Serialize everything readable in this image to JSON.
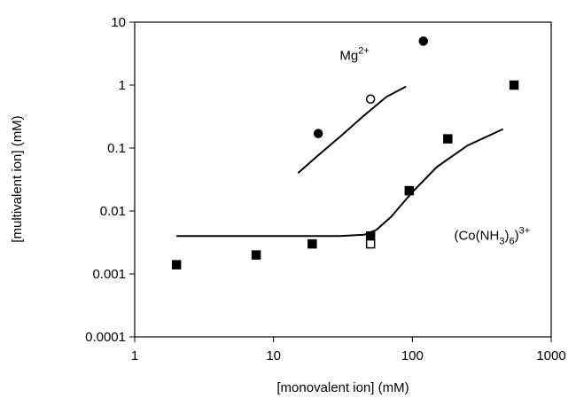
{
  "chart_data": {
    "type": "scatter",
    "x_label": "[monovalent ion] (mM)",
    "y_label": "[multivalent ion] (mM)",
    "log_x": true,
    "log_y": true,
    "xlim": [
      1,
      1000
    ],
    "xticks": [
      1,
      10,
      100,
      1000
    ],
    "ylim": [
      0.0001,
      10
    ],
    "yticks": [
      0.0001,
      0.001,
      0.01,
      0.1,
      1,
      10
    ],
    "color": "#000000",
    "series": [
      {
        "marker": "square",
        "filled": true,
        "x": [
          2,
          7.5,
          19,
          50,
          95,
          180,
          540
        ],
        "values": [
          0.0014,
          0.002,
          0.003,
          0.004,
          0.021,
          0.14,
          1
        ]
      },
      {
        "marker": "square",
        "filled": false,
        "x": [
          50
        ],
        "values": [
          0.003
        ]
      },
      {
        "marker": "circle",
        "filled": true,
        "x": [
          21,
          120
        ],
        "values": [
          0.17,
          5
        ]
      },
      {
        "marker": "circle",
        "filled": false,
        "x": [
          50
        ],
        "values": [
          0.6
        ]
      },
      {
        "marker": "line",
        "x": [
          15,
          20,
          30,
          45,
          65,
          90
        ],
        "values": [
          0.04,
          0.07,
          0.15,
          0.33,
          0.65,
          0.95
        ]
      },
      {
        "marker": "line",
        "x": [
          2,
          10,
          30,
          45,
          55,
          70,
          100,
          150,
          250,
          450
        ],
        "values": [
          0.004,
          0.004,
          0.004,
          0.0042,
          0.005,
          0.008,
          0.02,
          0.05,
          0.11,
          0.2
        ]
      }
    ],
    "annotations": [
      {
        "x": 30,
        "y": 2.5,
        "parts": [
          {
            "text": "Mg"
          },
          {
            "sup": "2+"
          }
        ]
      },
      {
        "x": 200,
        "y": 0.0035,
        "parts": [
          {
            "text": "(Co(NH"
          },
          {
            "sub": "3"
          },
          {
            "text": ")"
          },
          {
            "sub": "6"
          },
          {
            "text": ")"
          },
          {
            "sup": "3+"
          }
        ]
      }
    ]
  }
}
